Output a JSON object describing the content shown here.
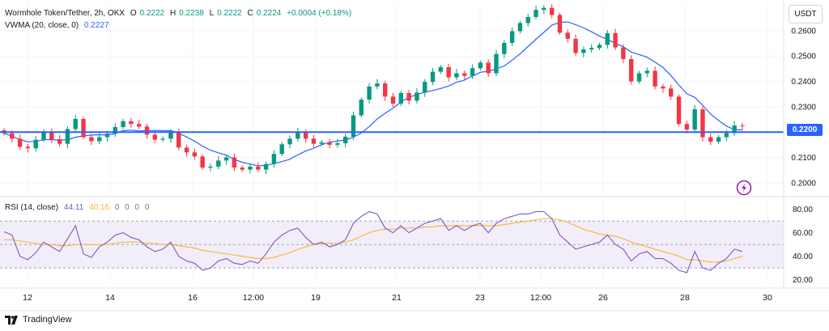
{
  "legend": {
    "symbol": "Wormhole Token/Tether, 2h, OKX",
    "open_label": "O",
    "open": "0.2222",
    "high_label": "H",
    "high": "0.2238",
    "low_label": "L",
    "low": "0.2222",
    "close_label": "C",
    "close": "0.2224",
    "change": "+0.0004 (+0.18%)",
    "vwma_label": "VWMA (20, close, 0)",
    "vwma_value": "0.2227",
    "rsi_label": "RSI (14, close)",
    "rsi_value": "44.11",
    "rsi_ma_value": "40.16",
    "rsi_extra": [
      "0",
      "0",
      "0",
      "0"
    ]
  },
  "currency_button": "USDT",
  "price_line_label": "0.2200",
  "footer": {
    "brand": "TradingView"
  },
  "colors": {
    "up": "#089981",
    "down": "#f23645",
    "vwma": "#2962ff",
    "price_line": "#2962ff",
    "rsi": "#7e57c2",
    "rsi_ma": "#f5b942",
    "rsi_band": "#ede7f6"
  },
  "chart_data": [
    {
      "type": "candlestick",
      "title": "Wormhole Token/Tether, 2h, OKX",
      "ylim": [
        0.1955,
        0.2705
      ],
      "y_ticks": [
        "0.2000",
        "0.2100",
        "0.2200",
        "0.2300",
        "0.2400",
        "0.2500",
        "0.2600"
      ],
      "x_ticks": [
        "12",
        "14",
        "16",
        "12:00",
        "19",
        "21",
        "23",
        "12:00",
        "26",
        "28",
        "30"
      ],
      "horizontal_line": 0.22,
      "close": [
        0.2195,
        0.2174,
        0.2142,
        0.2136,
        0.217,
        0.2202,
        0.2172,
        0.2154,
        0.2212,
        0.2252,
        0.218,
        0.2164,
        0.218,
        0.2194,
        0.222,
        0.2243,
        0.2232,
        0.2222,
        0.219,
        0.217,
        0.2174,
        0.2197,
        0.2139,
        0.212,
        0.2104,
        0.206,
        0.2064,
        0.2088,
        0.21,
        0.206,
        0.2052,
        0.2064,
        0.2052,
        0.2074,
        0.2114,
        0.2152,
        0.2174,
        0.22,
        0.2174,
        0.2154,
        0.216,
        0.215,
        0.2156,
        0.2182,
        0.2266,
        0.2328,
        0.238,
        0.2392,
        0.234,
        0.2312,
        0.2354,
        0.2324,
        0.2356,
        0.2398,
        0.2438,
        0.2456,
        0.2416,
        0.2432,
        0.2422,
        0.2452,
        0.2474,
        0.2432,
        0.2508,
        0.2552,
        0.2598,
        0.263,
        0.2654,
        0.2682,
        0.269,
        0.2662,
        0.2592,
        0.2568,
        0.2512,
        0.2526,
        0.2532,
        0.2544,
        0.259,
        0.2534,
        0.2488,
        0.24,
        0.2432,
        0.2442,
        0.238,
        0.2372,
        0.234,
        0.2232,
        0.221,
        0.229,
        0.218,
        0.2162,
        0.218,
        0.2196,
        0.2226,
        0.2224
      ],
      "x_count": 94,
      "series": [
        {
          "name": "VWMA (20, close, 0)"
        }
      ]
    },
    {
      "type": "line",
      "title": "RSI (14, close)",
      "ylim": [
        17,
        88
      ],
      "y_ticks": [
        "20.00",
        "40.00",
        "60.00",
        "80.00"
      ],
      "band_levels": [
        30,
        50,
        70
      ],
      "series": [
        {
          "name": "RSI",
          "values": [
            61,
            58,
            40,
            37,
            43,
            52,
            48,
            44,
            55,
            66,
            42,
            39,
            48,
            52,
            58,
            60,
            56,
            54,
            48,
            44,
            46,
            52,
            40,
            36,
            34,
            28,
            30,
            36,
            38,
            34,
            33,
            36,
            34,
            42,
            52,
            58,
            62,
            64,
            56,
            50,
            52,
            48,
            50,
            54,
            68,
            74,
            78,
            76,
            64,
            60,
            66,
            60,
            64,
            68,
            70,
            72,
            62,
            66,
            62,
            66,
            68,
            60,
            68,
            72,
            74,
            76,
            76,
            78,
            78,
            72,
            58,
            52,
            46,
            48,
            50,
            52,
            58,
            50,
            46,
            36,
            42,
            44,
            38,
            38,
            34,
            28,
            26,
            44,
            30,
            28,
            34,
            38,
            46,
            44
          ]
        },
        {
          "name": "RSI-based MA",
          "values": [
            54,
            54,
            53,
            52,
            51,
            50,
            50,
            49,
            49,
            50,
            50,
            50,
            50,
            50,
            51,
            52,
            52,
            52,
            51,
            51,
            50,
            50,
            49,
            48,
            47,
            45,
            44,
            43,
            42,
            41,
            40,
            39,
            38,
            38,
            39,
            41,
            43,
            46,
            48,
            50,
            51,
            51,
            51,
            52,
            54,
            57,
            60,
            62,
            63,
            63,
            64,
            64,
            64,
            65,
            65,
            66,
            66,
            66,
            66,
            66,
            66,
            66,
            66,
            67,
            68,
            69,
            70,
            71,
            72,
            72,
            71,
            69,
            66,
            63,
            61,
            59,
            58,
            57,
            55,
            52,
            50,
            48,
            46,
            44,
            42,
            40,
            37,
            37,
            36,
            35,
            35,
            36,
            38,
            40
          ]
        }
      ]
    }
  ]
}
